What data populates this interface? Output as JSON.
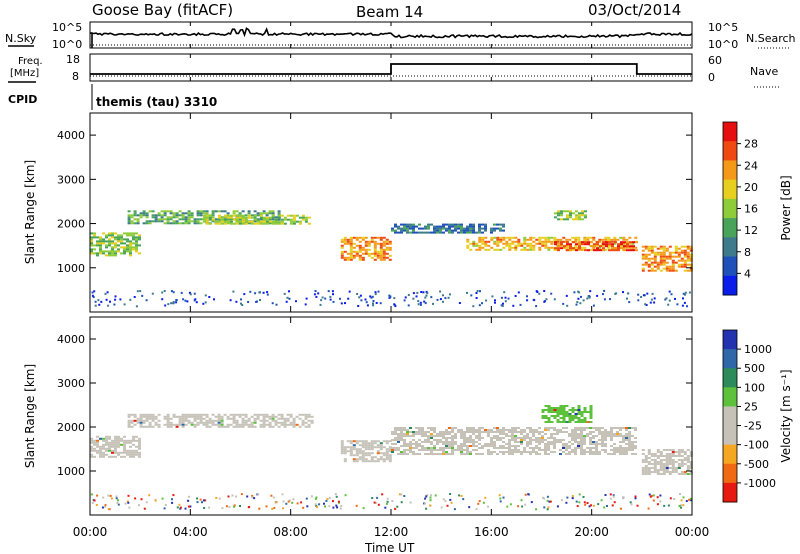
{
  "header": {
    "station": "Goose Bay (fitACF)",
    "beam": "Beam 14",
    "date": "03/Oct/2014"
  },
  "noise_panel": {
    "left_label": "N.Sky",
    "left_tick_top": "10^5",
    "left_tick_bottom": "10^0",
    "right_tick_top": "10^5",
    "right_tick_bottom": "10^0",
    "right_label": "N.Search"
  },
  "freq_panel": {
    "left_label_1": "Freq.",
    "left_label_2": "[MHz]",
    "left_tick_top": "18",
    "left_tick_bottom": "8",
    "right_tick_top": "60",
    "right_tick_bottom": "0",
    "right_label": "Nave"
  },
  "cpid": {
    "label": "CPID",
    "value": "themis (tau) 3310"
  },
  "x_axis": {
    "title": "Time UT",
    "ticks": [
      "00:00",
      "04:00",
      "08:00",
      "12:00",
      "16:00",
      "20:00",
      "00:00"
    ]
  },
  "chart_data": [
    {
      "type": "heatmap",
      "ylabel": "Slant Range [km]",
      "xlabel": "Time UT",
      "xlim": [
        0,
        24
      ],
      "ylim": [
        0,
        4500
      ],
      "yticks": [
        "1000",
        "2000",
        "3000",
        "4000"
      ],
      "colorbar": {
        "label": "Power [dB]",
        "ticks": [
          "4",
          "8",
          "12",
          "16",
          "20",
          "24",
          "28"
        ],
        "range": [
          0,
          30
        ],
        "colors": [
          "#0b1de8",
          "#1f52b8",
          "#3d7a8c",
          "#4aa35a",
          "#8fcc3a",
          "#e6cf1e",
          "#f59a18",
          "#ee4a12",
          "#e60f0f"
        ]
      },
      "bands": [
        {
          "t_start": 0.0,
          "t_end": 2.0,
          "range_start": 1300,
          "range_end": 1800,
          "level": 14
        },
        {
          "t_start": 1.5,
          "t_end": 7.5,
          "range_start": 2000,
          "range_end": 2300,
          "level": 12
        },
        {
          "t_start": 4.5,
          "t_end": 8.8,
          "range_start": 2000,
          "range_end": 2200,
          "level": 16
        },
        {
          "t_start": 10.0,
          "t_end": 12.0,
          "range_start": 1200,
          "range_end": 1700,
          "level": 22
        },
        {
          "t_start": 12.0,
          "t_end": 16.5,
          "range_start": 1800,
          "range_end": 2000,
          "level": 8
        },
        {
          "t_start": 15.0,
          "t_end": 21.8,
          "range_start": 1400,
          "range_end": 1700,
          "level": 20
        },
        {
          "t_start": 18.5,
          "t_end": 21.8,
          "range_start": 1400,
          "range_end": 1600,
          "level": 26
        },
        {
          "t_start": 18.5,
          "t_end": 19.8,
          "range_start": 2100,
          "range_end": 2300,
          "level": 14
        },
        {
          "t_start": 22.0,
          "t_end": 24.0,
          "range_start": 950,
          "range_end": 1500,
          "level": 22
        }
      ]
    },
    {
      "type": "heatmap",
      "ylabel": "Slant Range [km]",
      "xlabel": "Time UT",
      "xlim": [
        0,
        24
      ],
      "ylim": [
        0,
        4500
      ],
      "yticks": [
        "1000",
        "2000",
        "3000",
        "4000"
      ],
      "colorbar": {
        "label": "Velocity [m s⁻¹]",
        "ticks": [
          "1000",
          "500",
          "100",
          "25",
          "-25",
          "-100",
          "-500",
          "-1000"
        ],
        "range": [
          -1000,
          1000
        ],
        "colors": [
          "#2333b0",
          "#2e68a8",
          "#2d8a5a",
          "#5ec13c",
          "#c6c2b8",
          "#c6c2b8",
          "#f5a623",
          "#ef6a12",
          "#e61a10"
        ]
      },
      "bands": [
        {
          "t_start": 0.0,
          "t_end": 2.0,
          "range_start": 1300,
          "range_end": 1800,
          "value": 0
        },
        {
          "t_start": 1.5,
          "t_end": 8.8,
          "range_start": 2000,
          "range_end": 2300,
          "value": 0
        },
        {
          "t_start": 10.0,
          "t_end": 12.0,
          "range_start": 1200,
          "range_end": 1700,
          "value": 0
        },
        {
          "t_start": 12.0,
          "t_end": 21.8,
          "range_start": 1400,
          "range_end": 2000,
          "value": 0
        },
        {
          "t_start": 18.0,
          "t_end": 20.0,
          "range_start": 2100,
          "range_end": 2500,
          "value": 200
        },
        {
          "t_start": 22.0,
          "t_end": 24.0,
          "range_start": 950,
          "range_end": 1500,
          "value": 0
        }
      ]
    }
  ]
}
